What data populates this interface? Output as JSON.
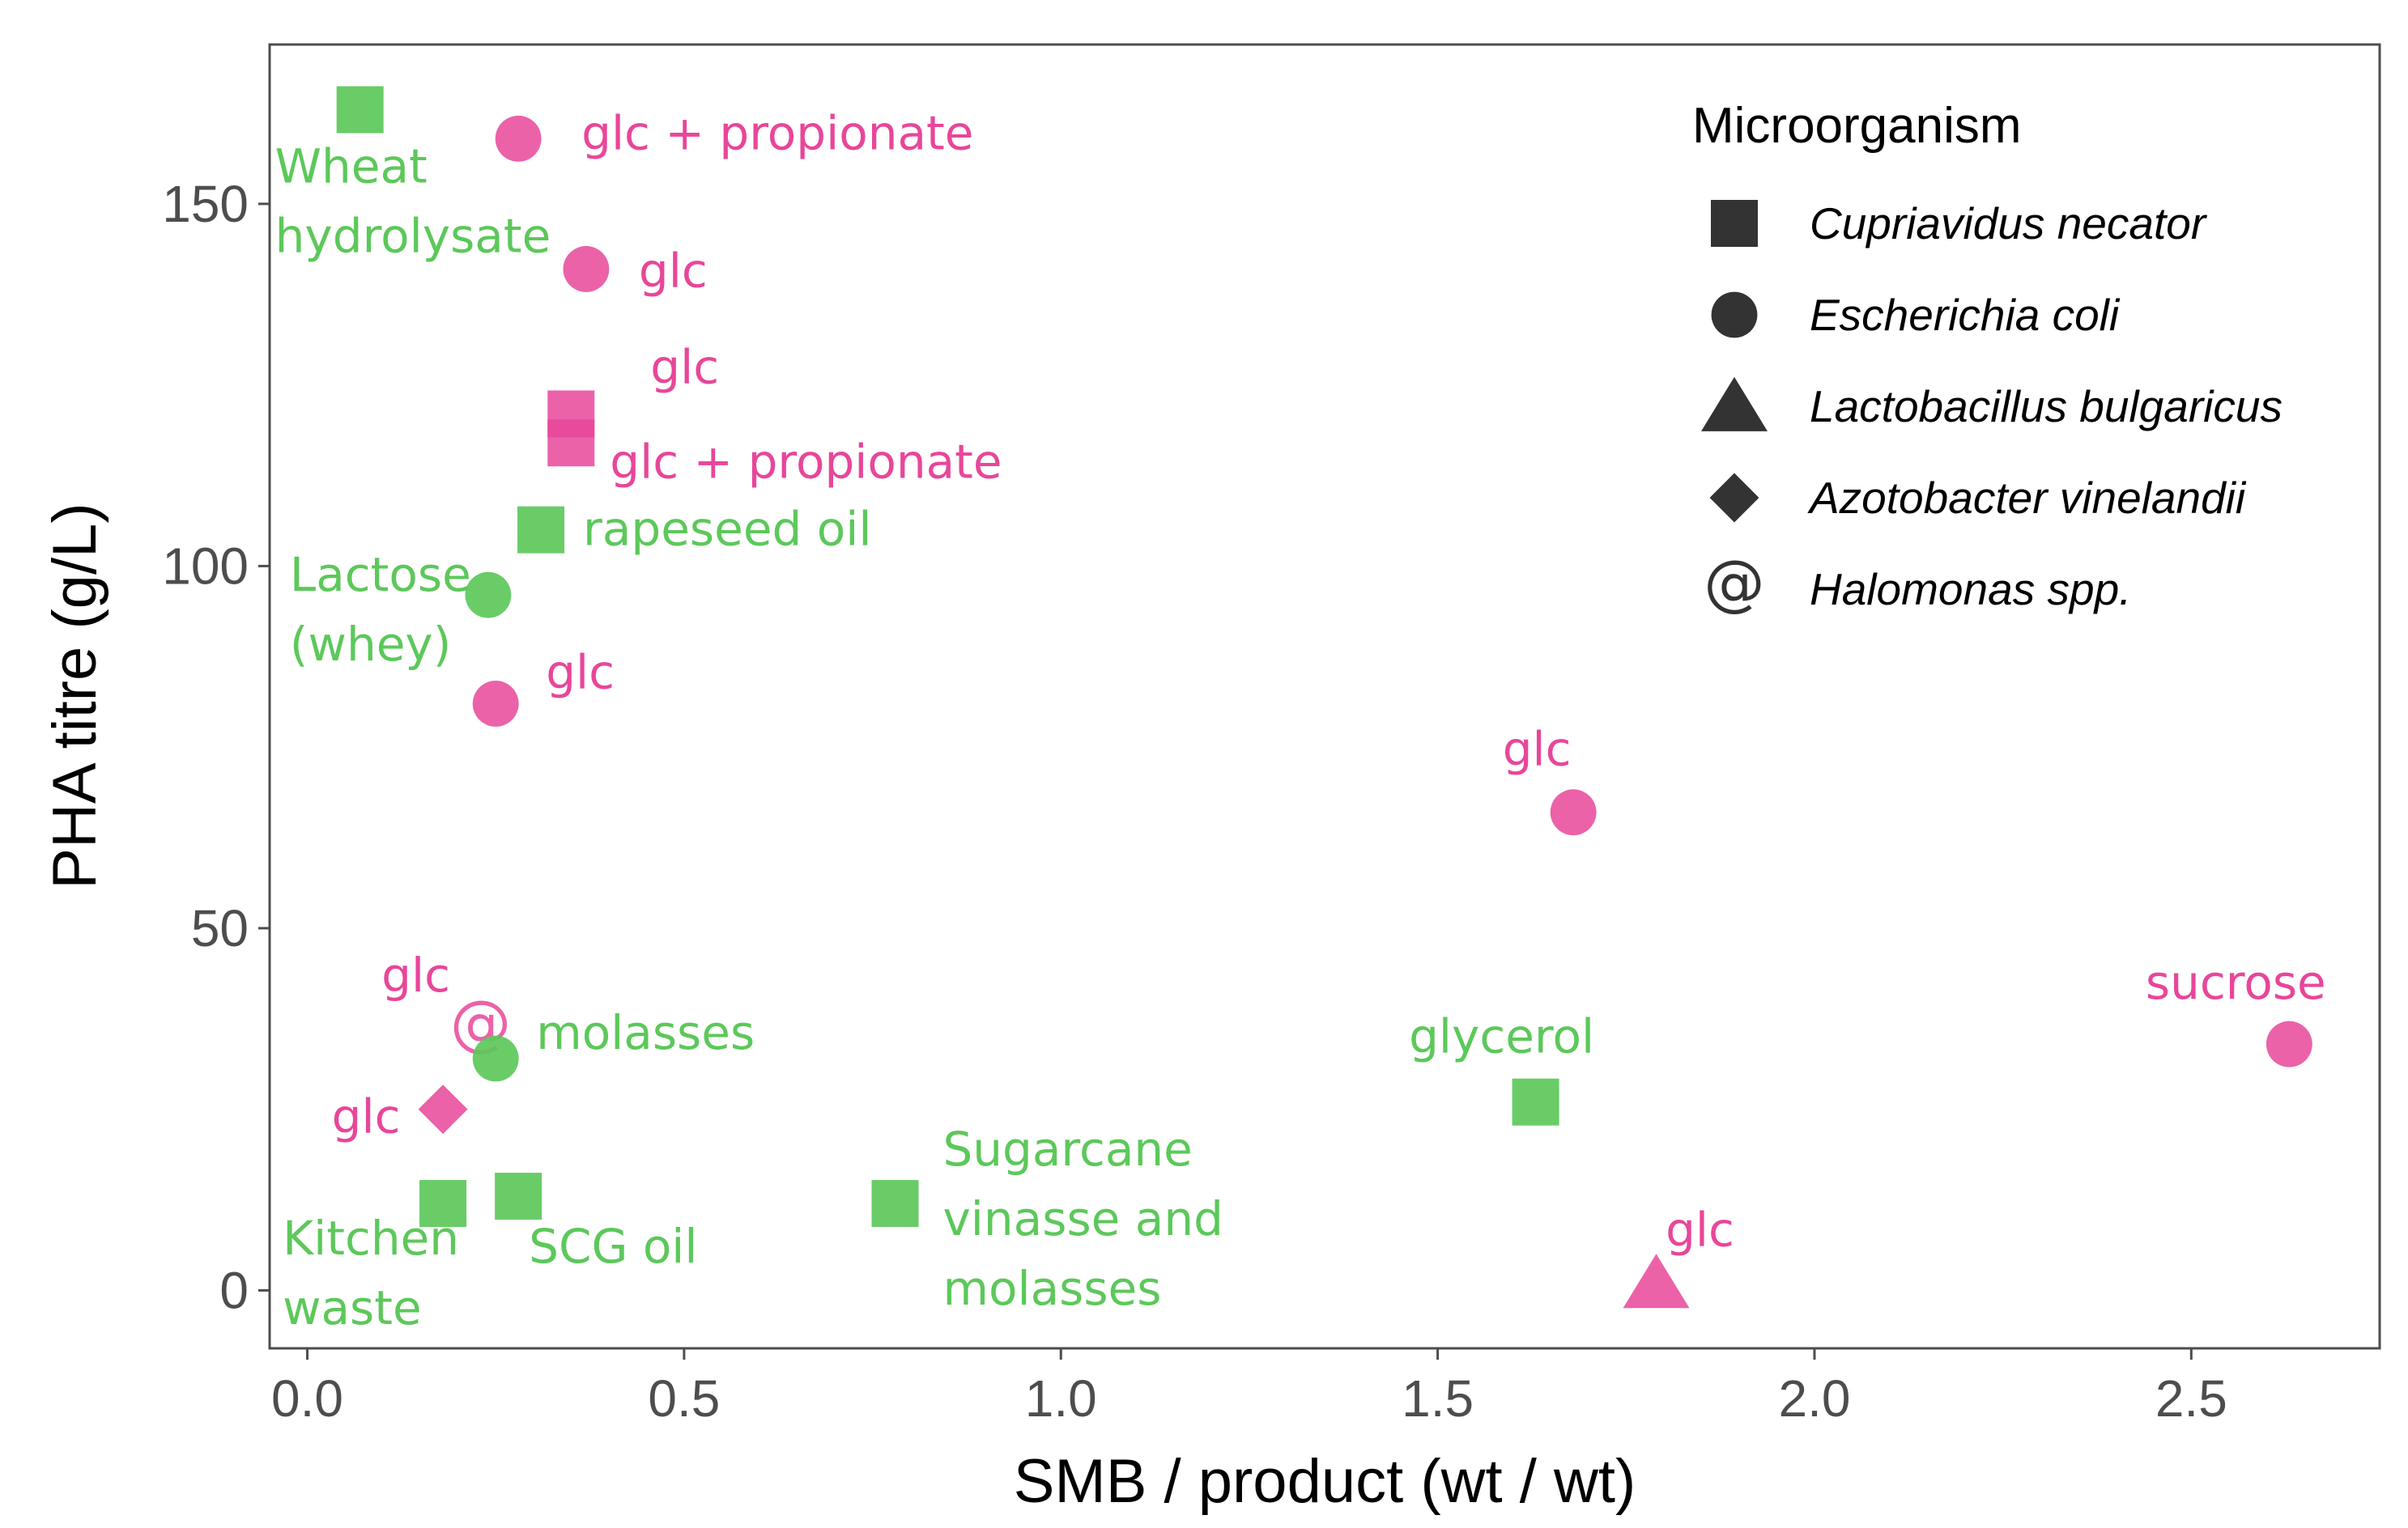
{
  "chart_data": {
    "type": "scatter",
    "title": "",
    "xlabel": "SMB / product (wt / wt)",
    "ylabel": "PHA titre (g/L)",
    "xlim": [
      -0.05,
      2.75
    ],
    "ylim": [
      -8,
      172
    ],
    "xticks": [
      0.0,
      0.5,
      1.0,
      1.5,
      2.0,
      2.5
    ],
    "xtick_labels": [
      "0.0",
      "0.5",
      "1.0",
      "1.5",
      "2.0",
      "2.5"
    ],
    "yticks": [
      0,
      50,
      100,
      150
    ],
    "ytick_labels": [
      "0",
      "50",
      "100",
      "150"
    ],
    "grid": false,
    "colors": {
      "pink": "#e8469a",
      "green": "#5cc85a",
      "axis": "#4d4d4d",
      "marker_legend": "#333333"
    },
    "legend": {
      "title": "Microorganism",
      "position": "top-right",
      "entries": [
        {
          "shape": "square",
          "label": "Cupriavidus necator"
        },
        {
          "shape": "circle",
          "label": "Escherichia coli"
        },
        {
          "shape": "triangle",
          "label": "Lactobacillus bulgaricus"
        },
        {
          "shape": "diamond",
          "label": "Azotobacter vinelandii"
        },
        {
          "shape": "at",
          "label": "Halomonas spp."
        }
      ]
    },
    "points": [
      {
        "x": 0.07,
        "y": 163,
        "shape": "square",
        "color": "green",
        "label": [
          "Wheat",
          "hydrolysate"
        ]
      },
      {
        "x": 0.28,
        "y": 159,
        "shape": "circle",
        "color": "pink",
        "label": [
          "glc + propionate"
        ]
      },
      {
        "x": 0.37,
        "y": 141,
        "shape": "circle",
        "color": "pink",
        "label": [
          "glc"
        ]
      },
      {
        "x": 0.35,
        "y": 121,
        "shape": "square",
        "color": "pink",
        "label": [
          "glc"
        ]
      },
      {
        "x": 0.35,
        "y": 117,
        "shape": "square",
        "color": "pink",
        "label": [
          "glc + propionate"
        ]
      },
      {
        "x": 0.31,
        "y": 105,
        "shape": "square",
        "color": "green",
        "label": [
          "rapeseed oil"
        ]
      },
      {
        "x": 0.24,
        "y": 96,
        "shape": "circle",
        "color": "green",
        "label": [
          "Lactose",
          "(whey)"
        ]
      },
      {
        "x": 0.25,
        "y": 81,
        "shape": "circle",
        "color": "pink",
        "label": [
          "glc"
        ]
      },
      {
        "x": 1.68,
        "y": 66,
        "shape": "circle",
        "color": "pink",
        "label": [
          "glc"
        ]
      },
      {
        "x": 2.63,
        "y": 34,
        "shape": "circle",
        "color": "pink",
        "label": [
          "sucrose"
        ]
      },
      {
        "x": 0.23,
        "y": 36,
        "shape": "at",
        "color": "pink",
        "label": [
          "glc"
        ]
      },
      {
        "x": 0.25,
        "y": 32,
        "shape": "circle",
        "color": "green",
        "label": [
          "molasses"
        ]
      },
      {
        "x": 0.18,
        "y": 25,
        "shape": "diamond",
        "color": "pink",
        "label": [
          "glc"
        ]
      },
      {
        "x": 1.63,
        "y": 26,
        "shape": "square",
        "color": "green",
        "label": [
          "glycerol"
        ]
      },
      {
        "x": 0.18,
        "y": 12,
        "shape": "square",
        "color": "green",
        "label": [
          "Kitchen",
          "waste"
        ]
      },
      {
        "x": 0.28,
        "y": 13,
        "shape": "square",
        "color": "green",
        "label": [
          "SCG oil"
        ]
      },
      {
        "x": 0.78,
        "y": 12,
        "shape": "square",
        "color": "green",
        "label": [
          "Sugarcane",
          "vinasse and",
          "molasses"
        ]
      },
      {
        "x": 1.79,
        "y": 1,
        "shape": "triangle",
        "color": "pink",
        "label": [
          "glc"
        ]
      }
    ]
  }
}
